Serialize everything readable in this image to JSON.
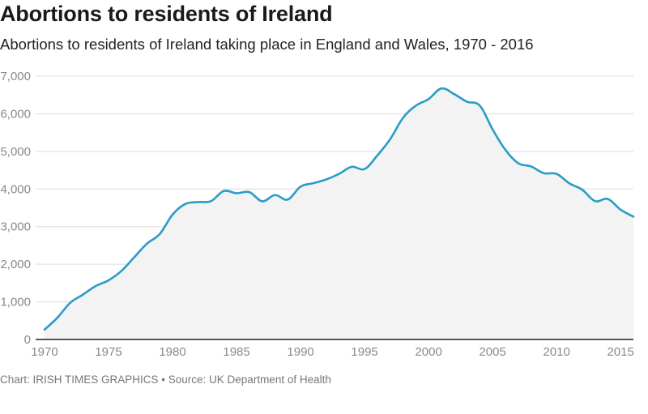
{
  "header": {
    "title": "Abortions to residents of Ireland",
    "subtitle": "Abortions to residents of Ireland taking place in England and Wales, 1970 - 2016"
  },
  "footer": {
    "credit": "Chart: IRISH TIMES GRAPHICS • Source: UK Department of Health"
  },
  "colors": {
    "line": "#2a9cc6",
    "area": "#f3f3f3",
    "grid": "#e3e3e3",
    "axis": "#222222"
  },
  "chart_data": {
    "type": "area",
    "title": "Abortions to residents of Ireland",
    "subtitle": "Abortions to residents of Ireland taking place in England and Wales, 1970 - 2016",
    "xlabel": "",
    "ylabel": "",
    "xlim": [
      1970,
      2016
    ],
    "ylim": [
      0,
      7000
    ],
    "grid": true,
    "legend": "none",
    "x_ticks": [
      "1970",
      "1975",
      "1980",
      "1985",
      "1990",
      "1995",
      "2000",
      "2005",
      "2010",
      "2015"
    ],
    "y_ticks": [
      "0",
      "1,000",
      "2,000",
      "3,000",
      "4,000",
      "5,000",
      "6,000",
      "7,000"
    ],
    "x": [
      1970,
      1971,
      1972,
      1973,
      1974,
      1975,
      1976,
      1977,
      1978,
      1979,
      1980,
      1981,
      1982,
      1983,
      1984,
      1985,
      1986,
      1987,
      1988,
      1989,
      1990,
      1991,
      1992,
      1993,
      1994,
      1995,
      1996,
      1997,
      1998,
      1999,
      2000,
      2001,
      2002,
      2003,
      2004,
      2005,
      2006,
      2007,
      2008,
      2009,
      2010,
      2011,
      2012,
      2013,
      2014,
      2015,
      2016
    ],
    "series": [
      {
        "name": "Abortions",
        "values": [
          261,
          577,
          974,
          1193,
          1421,
          1573,
          1821,
          2183,
          2548,
          2804,
          3320,
          3603,
          3653,
          3677,
          3946,
          3888,
          3918,
          3673,
          3839,
          3721,
          4064,
          4154,
          4254,
          4402,
          4590,
          4532,
          4894,
          5325,
          5891,
          6214,
          6391,
          6673,
          6522,
          6320,
          6217,
          5585,
          5042,
          4686,
          4600,
          4422,
          4402,
          4149,
          3982,
          3679,
          3735,
          3451,
          3265
        ]
      }
    ],
    "source": "Chart: IRISH TIMES GRAPHICS • Source: UK Department of Health"
  }
}
